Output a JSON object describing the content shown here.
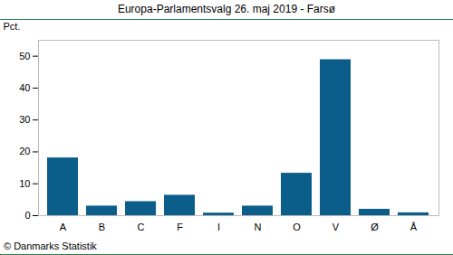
{
  "chart_data": {
    "type": "bar",
    "title": "Europa-Parlamentsvalg 26. maj 2019 - Farsø",
    "y_label": "Pct.",
    "caption": "© Danmarks Statistik",
    "categories": [
      "A",
      "B",
      "C",
      "F",
      "I",
      "N",
      "O",
      "V",
      "Ø",
      "Å"
    ],
    "values": [
      18.1,
      3.0,
      4.4,
      6.4,
      0.8,
      3.0,
      13.3,
      48.9,
      2.0,
      0.9
    ],
    "color": "#0b5d8a",
    "ylim": [
      0,
      55
    ],
    "yticks": [
      0,
      10,
      20,
      30,
      40,
      50
    ],
    "grid": false
  }
}
